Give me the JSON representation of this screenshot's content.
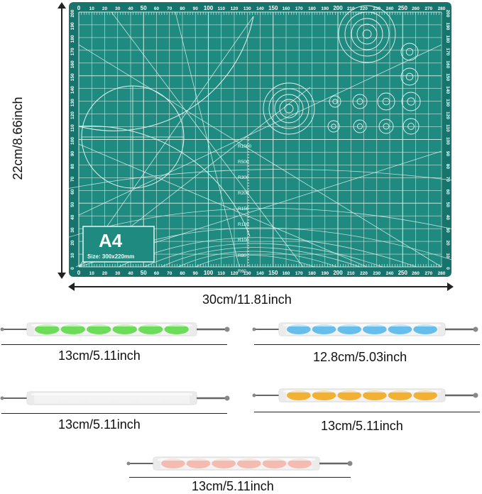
{
  "mat": {
    "size_label": "A4",
    "size_text": "Size: 300x220mm",
    "colors": {
      "mat": "#1f8a80",
      "mat_edge": "#17746c",
      "lines": "#e6f5f2"
    },
    "top_ruler": [
      "0",
      "10",
      "20",
      "30",
      "40",
      "50",
      "60",
      "70",
      "80",
      "90",
      "100",
      "110",
      "120",
      "130",
      "140",
      "150",
      "160",
      "170",
      "180",
      "190",
      "200",
      "210",
      "220",
      "230",
      "240",
      "250",
      "260",
      "270",
      "280"
    ],
    "side_ruler": [
      "200",
      "190",
      "180",
      "170",
      "160",
      "150",
      "140",
      "130",
      "120",
      "110",
      "100",
      "90",
      "80",
      "70",
      "60",
      "50",
      "40",
      "30",
      "20",
      "10",
      "0"
    ],
    "radius_labels": [
      "R1000",
      "R500",
      "R300",
      "R200",
      "R150",
      "R120",
      "R100",
      "R80",
      "R60"
    ]
  },
  "dimensions": {
    "mat_height": "22cm/8.66inch",
    "mat_width": "30cm/11.81inch"
  },
  "tools": [
    {
      "name": "green-dotting-tool",
      "color": "#5fd94a",
      "label": "13cm/5.11inch"
    },
    {
      "name": "blue-dotting-tool",
      "color": "#59b8ea",
      "label": "12.8cm/5.03inch"
    },
    {
      "name": "white-dotting-tool",
      "color": "#f3f3f3",
      "label": "13cm/5.11inch"
    },
    {
      "name": "orange-dotting-tool",
      "color": "#f2aa1e",
      "label": "13cm/5.11inch"
    },
    {
      "name": "pink-dotting-tool",
      "color": "#f4b5aa",
      "label": "13cm/5.11inch"
    }
  ]
}
